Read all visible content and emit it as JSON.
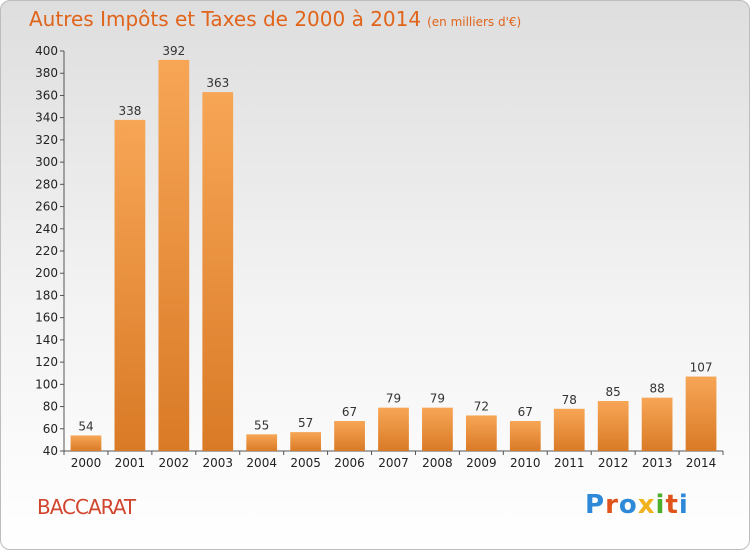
{
  "header": {
    "title": "Autres Impôts et Taxes de 2000 à 2014",
    "subtitle": "(en milliers d'€)"
  },
  "footer": {
    "commune": "BACCARAT",
    "logo_text": "Proxiti",
    "logo_colors": [
      "#2e8ad8",
      "#e0531a",
      "#2e8ad8",
      "#f2b21c",
      "#4caf2a",
      "#e0531a",
      "#2e8ad8"
    ]
  },
  "chart_data": {
    "type": "bar",
    "categories": [
      "2000",
      "2001",
      "2002",
      "2003",
      "2004",
      "2005",
      "2006",
      "2007",
      "2008",
      "2009",
      "2010",
      "2011",
      "2012",
      "2013",
      "2014"
    ],
    "values": [
      54,
      338,
      392,
      363,
      55,
      57,
      67,
      79,
      79,
      72,
      67,
      78,
      85,
      88,
      107
    ],
    "ylim": [
      40,
      400
    ],
    "yticks": [
      40,
      60,
      80,
      100,
      120,
      140,
      160,
      180,
      200,
      220,
      240,
      260,
      280,
      300,
      320,
      340,
      360,
      380,
      400
    ],
    "grid": false,
    "bar_color_top": "#f7a656",
    "bar_color_bottom": "#d97a26"
  }
}
